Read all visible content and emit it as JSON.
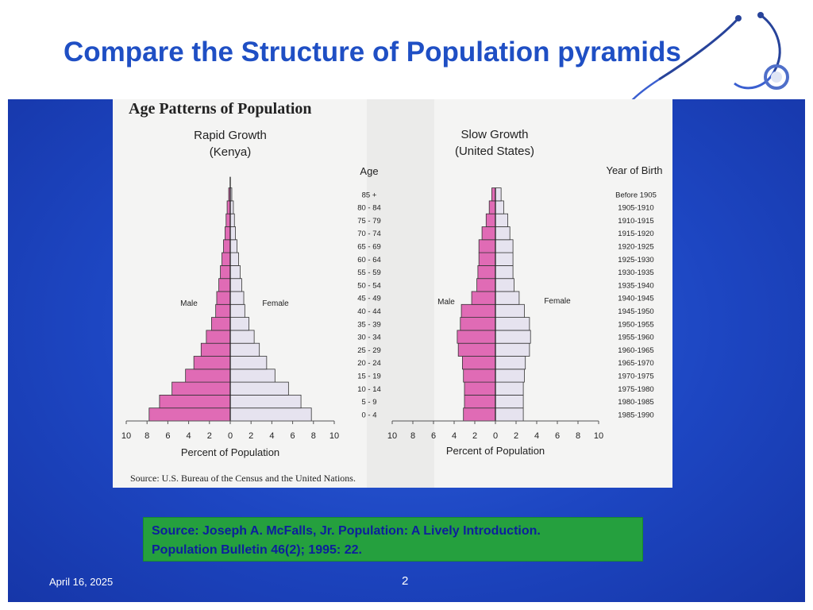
{
  "slide": {
    "title": "Compare the Structure of Population pyramids",
    "date": "April 16, 2025",
    "page_number": "2",
    "source_lines": [
      "Source: Joseph A. McFalls, Jr. Population: A Lively Introduction.",
      "Population Bulletin 46(2); 1995: 22."
    ]
  },
  "figure": {
    "title": "Age Patterns of Population",
    "age_header": "Age",
    "year_header": "Year of Birth",
    "source": "Source: U.S. Bureau of the Census and the United Nations."
  },
  "colors": {
    "male": "#e06bb5",
    "female": "#e6e3ef",
    "title_blue": "#1f4fc4",
    "panel_blue": "#2352cc",
    "source_green": "#25a03e"
  },
  "chart_data": [
    {
      "type": "bar",
      "orientation": "horizontal-pyramid",
      "title": "Rapid Growth",
      "subtitle": "(Kenya)",
      "xlabel": "Percent of Population",
      "xticks": [
        10,
        8,
        6,
        4,
        2,
        0,
        2,
        4,
        6,
        8,
        10
      ],
      "xlim": [
        -10,
        10
      ],
      "categories": [
        "0 - 4",
        "5 - 9",
        "10 - 14",
        "15 - 19",
        "20 - 24",
        "25 - 29",
        "30 - 34",
        "35 - 39",
        "40 - 44",
        "45 - 49",
        "50 - 54",
        "55 - 59",
        "60 - 64",
        "65 - 69",
        "70 - 74",
        "75 - 79",
        "80 - 84",
        "85 +"
      ],
      "series": [
        {
          "name": "Male",
          "values": [
            7.8,
            6.8,
            5.6,
            4.3,
            3.5,
            2.8,
            2.3,
            1.8,
            1.4,
            1.3,
            1.1,
            0.95,
            0.8,
            0.65,
            0.5,
            0.4,
            0.3,
            0.15
          ]
        },
        {
          "name": "Female",
          "values": [
            7.8,
            6.8,
            5.6,
            4.3,
            3.5,
            2.8,
            2.3,
            1.8,
            1.4,
            1.3,
            1.1,
            0.95,
            0.8,
            0.65,
            0.5,
            0.4,
            0.3,
            0.15
          ]
        }
      ]
    },
    {
      "type": "bar",
      "orientation": "horizontal-pyramid",
      "title": "Slow Growth",
      "subtitle": "(United States)",
      "xlabel": "Percent of Population",
      "xticks": [
        10,
        8,
        6,
        4,
        2,
        0,
        2,
        4,
        6,
        8,
        10
      ],
      "xlim": [
        -10,
        10
      ],
      "categories": [
        "0 - 4",
        "5 - 9",
        "10 - 14",
        "15 - 19",
        "20 - 24",
        "25 - 29",
        "30 - 34",
        "35 - 39",
        "40 - 44",
        "45 - 49",
        "50 - 54",
        "55 - 59",
        "60 - 64",
        "65 - 69",
        "70 - 74",
        "75 - 79",
        "80 - 84",
        "85 +"
      ],
      "years_of_birth": [
        "1985-1990",
        "1980-1985",
        "1975-1980",
        "1970-1975",
        "1965-1970",
        "1960-1965",
        "1955-1960",
        "1950-1955",
        "1945-1950",
        "1940-1945",
        "1935-1940",
        "1930-1935",
        "1925-1930",
        "1920-1925",
        "1915-1920",
        "1910-1915",
        "1905-1910",
        "Before 1905"
      ],
      "series": [
        {
          "name": "Male",
          "values": [
            3.1,
            3.0,
            3.0,
            3.1,
            3.2,
            3.6,
            3.7,
            3.4,
            3.3,
            2.3,
            1.8,
            1.7,
            1.6,
            1.6,
            1.3,
            0.9,
            0.6,
            0.35
          ]
        },
        {
          "name": "Female",
          "values": [
            2.7,
            2.7,
            2.7,
            2.8,
            2.9,
            3.3,
            3.4,
            3.3,
            2.8,
            2.3,
            1.8,
            1.7,
            1.7,
            1.7,
            1.4,
            1.2,
            0.8,
            0.55
          ]
        }
      ]
    }
  ]
}
